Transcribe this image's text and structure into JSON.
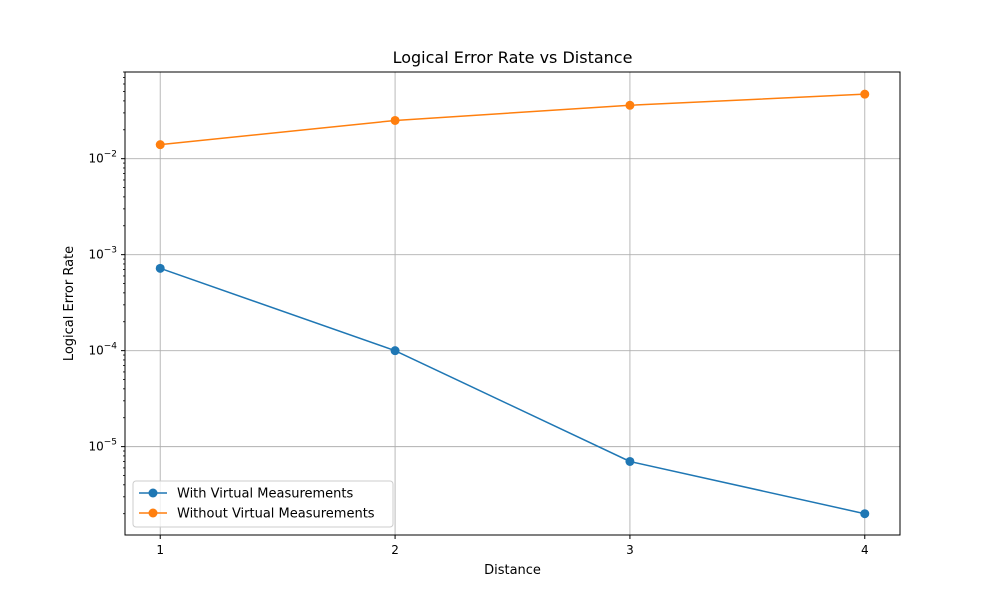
{
  "chart_data": {
    "type": "line",
    "title": "Logical Error Rate vs Distance",
    "xlabel": "Distance",
    "ylabel": "Logical Error Rate",
    "x": [
      1,
      2,
      3,
      4
    ],
    "x_ticks": [
      "1",
      "2",
      "3",
      "4"
    ],
    "y_scale": "log",
    "ylim": [
      1.2e-06,
      0.08
    ],
    "y_ticks": [
      {
        "value": 1e-05,
        "base": "10",
        "exp": "−5"
      },
      {
        "value": 0.0001,
        "base": "10",
        "exp": "−4"
      },
      {
        "value": 0.001,
        "base": "10",
        "exp": "−3"
      },
      {
        "value": 0.01,
        "base": "10",
        "exp": "−2"
      }
    ],
    "grid": true,
    "legend_position": "lower-left",
    "series": [
      {
        "name": "With Virtual Measurements",
        "color": "#1f77b4",
        "marker": "circle",
        "values": [
          0.00072,
          0.0001,
          7e-06,
          2e-06
        ]
      },
      {
        "name": "Without Virtual Measurements",
        "color": "#ff7f0e",
        "marker": "circle",
        "values": [
          0.014,
          0.025,
          0.036,
          0.047
        ]
      }
    ]
  }
}
